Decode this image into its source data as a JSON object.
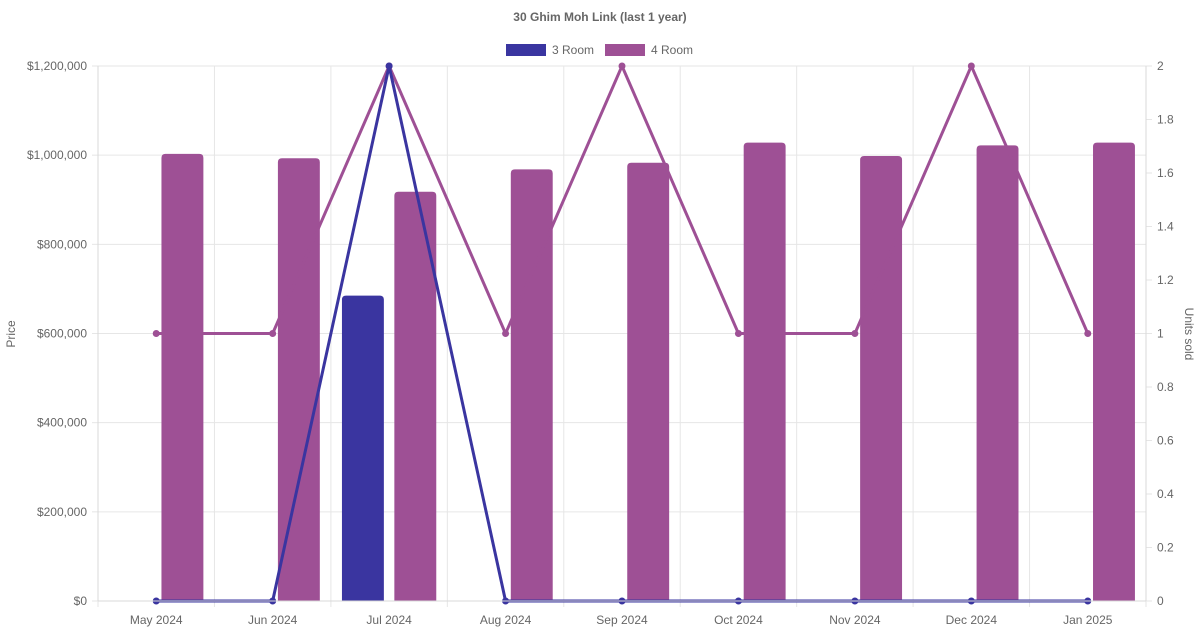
{
  "chart_data": {
    "type": "bar",
    "title": "30 Ghim Moh Link (last 1 year)",
    "categories": [
      "May 2024",
      "Jun 2024",
      "Jul 2024",
      "Aug 2024",
      "Sep 2024",
      "Oct 2024",
      "Nov 2024",
      "Dec 2024",
      "Jan 2025"
    ],
    "ylabel": "Price",
    "y2label": "Units sold",
    "ylim": [
      0,
      1200000
    ],
    "y2lim": [
      0,
      2
    ],
    "yticks": [
      "$0",
      "$200,000",
      "$400,000",
      "$600,000",
      "$800,000",
      "$1,000,000",
      "$1,200,000"
    ],
    "y2ticks": [
      "0",
      "0.2",
      "0.4",
      "0.6",
      "0.8",
      "1",
      "1.2",
      "1.4",
      "1.6",
      "1.8",
      "2"
    ],
    "grid": true,
    "legend_position": "top",
    "series": [
      {
        "name": "3 Room",
        "color": "#3a35a0",
        "price": [
          null,
          null,
          685000,
          null,
          null,
          null,
          null,
          null,
          null
        ],
        "units_sold": [
          0,
          0,
          2,
          0,
          0,
          0,
          0,
          0,
          0
        ]
      },
      {
        "name": "4 Room",
        "color": "#9e5095",
        "price": [
          1003000,
          993000,
          918000,
          968000,
          983000,
          1028000,
          998000,
          1022000,
          1028000
        ],
        "units_sold": [
          1,
          1,
          2,
          1,
          2,
          1,
          1,
          2,
          1
        ]
      }
    ]
  }
}
